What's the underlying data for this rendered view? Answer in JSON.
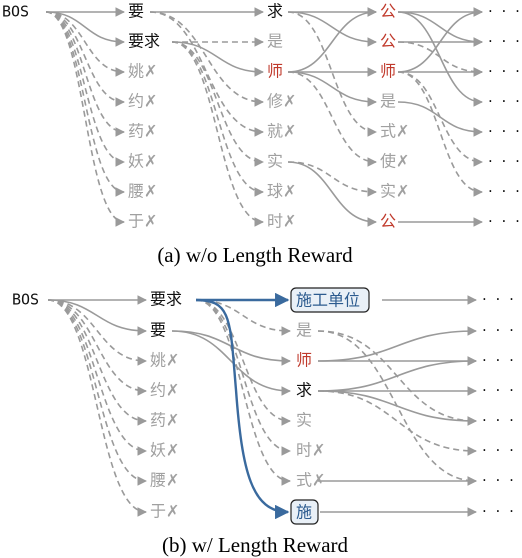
{
  "colors": {
    "edge": "#9a9a9a",
    "token_black": "#111111",
    "token_gray": "#a0a0a0",
    "token_red": "#c0392b",
    "highlight_edge": "#3a6a9e",
    "highlight_fill": "#e9f0f7"
  },
  "panel_a": {
    "caption": "(a) w/o Length Reward",
    "bos": "BOS",
    "col1": [
      {
        "text": "要",
        "color": "black",
        "edge": "solid"
      },
      {
        "text": "要求",
        "color": "black",
        "edge": "solid"
      },
      {
        "text": "姚✗",
        "color": "gray",
        "edge": "dashed"
      },
      {
        "text": "约✗",
        "color": "gray",
        "edge": "dashed"
      },
      {
        "text": "药✗",
        "color": "gray",
        "edge": "dashed"
      },
      {
        "text": "妖✗",
        "color": "gray",
        "edge": "dashed"
      },
      {
        "text": "腰✗",
        "color": "gray",
        "edge": "dashed"
      },
      {
        "text": "于✗",
        "color": "gray",
        "edge": "dashed"
      }
    ],
    "col2": [
      {
        "text": "求",
        "color": "black"
      },
      {
        "text": "是",
        "color": "gray"
      },
      {
        "text": "师",
        "color": "red"
      },
      {
        "text": "修✗",
        "color": "gray"
      },
      {
        "text": "就✗",
        "color": "gray"
      },
      {
        "text": "实",
        "color": "gray"
      },
      {
        "text": "球✗",
        "color": "gray"
      },
      {
        "text": "时✗",
        "color": "gray"
      }
    ],
    "col3": [
      {
        "text": "公",
        "color": "red"
      },
      {
        "text": "公",
        "color": "red"
      },
      {
        "text": "师",
        "color": "red"
      },
      {
        "text": "是",
        "color": "gray"
      },
      {
        "text": "式✗",
        "color": "gray"
      },
      {
        "text": "使✗",
        "color": "gray"
      },
      {
        "text": "实✗",
        "color": "gray"
      },
      {
        "text": "公",
        "color": "red"
      }
    ],
    "ellipsis": "· · ·"
  },
  "panel_b": {
    "caption": "(b) w/ Length Reward",
    "bos": "BOS",
    "col1": [
      {
        "text": "要求",
        "color": "black",
        "edge": "solid"
      },
      {
        "text": "要",
        "color": "black",
        "edge": "solid"
      },
      {
        "text": "姚✗",
        "color": "gray",
        "edge": "dashed"
      },
      {
        "text": "约✗",
        "color": "gray",
        "edge": "dashed"
      },
      {
        "text": "药✗",
        "color": "gray",
        "edge": "dashed"
      },
      {
        "text": "妖✗",
        "color": "gray",
        "edge": "dashed"
      },
      {
        "text": "腰✗",
        "color": "gray",
        "edge": "dashed"
      },
      {
        "text": "于✗",
        "color": "gray",
        "edge": "dashed"
      }
    ],
    "col2": [
      {
        "text": "施工单位",
        "color": "blue-box"
      },
      {
        "text": "是",
        "color": "gray"
      },
      {
        "text": "师",
        "color": "red"
      },
      {
        "text": "求",
        "color": "black"
      },
      {
        "text": "实",
        "color": "gray"
      },
      {
        "text": "时✗",
        "color": "gray"
      },
      {
        "text": "式✗",
        "color": "gray"
      },
      {
        "text": "施",
        "color": "blue-box"
      }
    ],
    "ellipsis": "· · ·"
  }
}
